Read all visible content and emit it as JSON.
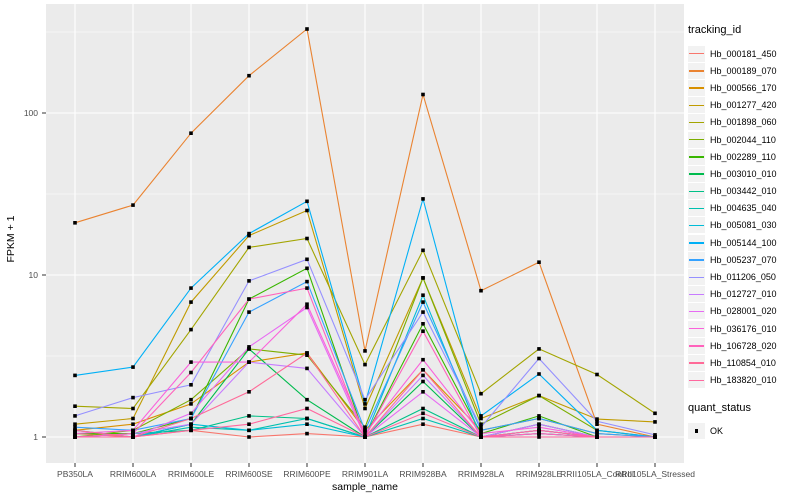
{
  "figure": {
    "background": "#ffffff",
    "panel_background": "#ebebeb",
    "grid_color": "#ffffff",
    "tick_color": "#333333",
    "tick_label_color": "#4d4d4d",
    "point_color": "#000000"
  },
  "chart_data": {
    "type": "line",
    "title": "",
    "xlabel": "sample_name",
    "ylabel": "FPKM + 1",
    "y_scale": "log10",
    "y_ticks": [
      1,
      10,
      100
    ],
    "y_minor_ticks": [
      3.162,
      31.62,
      316.2
    ],
    "ylim": [
      0.7,
      470
    ],
    "grid": true,
    "legend_position": "right",
    "categories": [
      "PB350LA",
      "RRIM600LA",
      "RRIM600LE",
      "RRIM600SE",
      "RRIM600PE",
      "RRIM901LA",
      "RRIM928BA",
      "RRIM928LA",
      "RRIM928LE",
      "RRII105LA_Control",
      "RRII105LA_Stressed"
    ],
    "series": [
      {
        "name": "Hb_000181_450",
        "color": "#F8766D",
        "values": [
          1.05,
          1.0,
          1.1,
          1.0,
          1.05,
          1.0,
          1.2,
          1.0,
          1.05,
          1.0,
          1.0
        ]
      },
      {
        "name": "Hb_000189_070",
        "color": "#EA8331",
        "values": [
          21,
          27,
          75,
          170,
          330,
          3.4,
          130,
          8.0,
          12,
          1.2,
          1.0
        ]
      },
      {
        "name": "Hb_000566_170",
        "color": "#D89000",
        "values": [
          1.1,
          1.2,
          1.6,
          2.9,
          3.3,
          1.1,
          2.6,
          1.1,
          1.3,
          1.05,
          1.0
        ]
      },
      {
        "name": "Hb_001277_420",
        "color": "#C09B00",
        "values": [
          1.2,
          1.3,
          6.8,
          17.5,
          25,
          1.5,
          9.6,
          1.3,
          1.8,
          1.29,
          1.24
        ]
      },
      {
        "name": "Hb_001898_060",
        "color": "#A3A500",
        "values": [
          1.55,
          1.5,
          4.6,
          14.8,
          16.8,
          2.8,
          14.2,
          1.85,
          3.5,
          2.43,
          1.4
        ]
      },
      {
        "name": "Hb_002044_110",
        "color": "#7CAE00",
        "values": [
          1.0,
          1.1,
          1.7,
          3.5,
          3.2,
          1.15,
          9.6,
          1.2,
          1.8,
          1.1,
          1.0
        ]
      },
      {
        "name": "Hb_002289_110",
        "color": "#39B600",
        "values": [
          1.05,
          1.05,
          1.3,
          7.1,
          11.0,
          1.0,
          5.0,
          1.05,
          1.35,
          1.0,
          1.0
        ]
      },
      {
        "name": "Hb_003010_010",
        "color": "#00BB4E",
        "values": [
          1.0,
          1.0,
          1.2,
          3.5,
          1.7,
          1.0,
          2.2,
          1.0,
          1.2,
          1.0,
          1.0
        ]
      },
      {
        "name": "Hb_003442_010",
        "color": "#00C087",
        "values": [
          1.0,
          1.05,
          1.1,
          1.35,
          1.3,
          1.0,
          1.5,
          1.0,
          1.1,
          1.0,
          1.0
        ]
      },
      {
        "name": "Hb_004635_040",
        "color": "#00C0AF",
        "values": [
          1.0,
          1.0,
          1.15,
          1.1,
          1.3,
          1.0,
          1.3,
          1.0,
          1.05,
          1.0,
          1.0
        ]
      },
      {
        "name": "Hb_005081_030",
        "color": "#00BCD8",
        "values": [
          1.1,
          1.0,
          1.2,
          1.1,
          1.2,
          1.0,
          7.5,
          1.0,
          1.1,
          1.0,
          1.0
        ]
      },
      {
        "name": "Hb_005144_100",
        "color": "#00B0F6",
        "values": [
          2.4,
          2.7,
          8.3,
          18.0,
          28.5,
          1.6,
          29.5,
          1.35,
          2.45,
          1.1,
          1.0
        ]
      },
      {
        "name": "Hb_005237_070",
        "color": "#35A2FF",
        "values": [
          1.15,
          1.1,
          1.3,
          5.9,
          9.1,
          1.1,
          6.8,
          1.1,
          1.3,
          1.05,
          1.0
        ]
      },
      {
        "name": "Hb_011206_050",
        "color": "#9590FF",
        "values": [
          1.35,
          1.75,
          2.1,
          9.2,
          12.5,
          1.7,
          5.9,
          1.15,
          3.05,
          1.25,
          1.03
        ]
      },
      {
        "name": "Hb_012727_010",
        "color": "#C77CFF",
        "values": [
          1.0,
          1.05,
          1.2,
          2.9,
          2.65,
          1.0,
          2.4,
          1.0,
          1.2,
          1.0,
          1.0
        ]
      },
      {
        "name": "Hb_028001_020",
        "color": "#E76BF3",
        "values": [
          1.0,
          1.0,
          1.4,
          3.6,
          6.3,
          1.0,
          1.9,
          1.0,
          1.1,
          1.0,
          1.0
        ]
      },
      {
        "name": "Hb_036176_010",
        "color": "#FA62DB",
        "values": [
          1.05,
          1.1,
          2.9,
          2.9,
          6.6,
          1.05,
          3.0,
          1.05,
          1.15,
          1.0,
          1.0
        ]
      },
      {
        "name": "Hb_106728_020",
        "color": "#FF62BC",
        "values": [
          1.0,
          1.05,
          2.5,
          7.1,
          8.3,
          1.0,
          4.5,
          1.0,
          1.05,
          1.0,
          1.0
        ]
      },
      {
        "name": "Hb_110854_010",
        "color": "#FF6A98",
        "values": [
          1.1,
          1.0,
          1.3,
          1.9,
          3.3,
          1.0,
          2.6,
          1.0,
          1.1,
          1.0,
          1.0
        ]
      },
      {
        "name": "Hb_183820_010",
        "color": "#FF689F",
        "values": [
          1.0,
          1.0,
          1.1,
          1.2,
          1.5,
          1.0,
          1.4,
          1.0,
          1.0,
          1.0,
          1.0
        ]
      }
    ],
    "points": {
      "shape": "square",
      "color": "#000000"
    },
    "legend": {
      "tracking_title": "tracking_id",
      "quant_title": "quant_status",
      "quant_items": [
        {
          "label": "OK"
        }
      ]
    }
  }
}
